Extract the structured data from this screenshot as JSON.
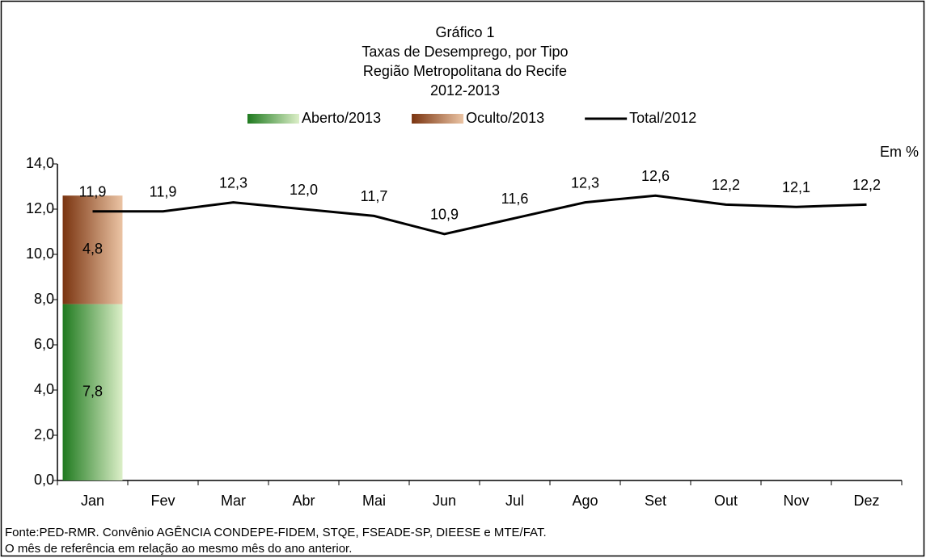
{
  "chart_data": {
    "type": "combo",
    "title": [
      "Gráfico 1",
      "Taxas de Desemprego, por Tipo",
      "Região Metropolitana do Recife",
      "2012-2013"
    ],
    "unit_label": "Em %",
    "categories": [
      "Jan",
      "Fev",
      "Mar",
      "Abr",
      "Mai",
      "Jun",
      "Jul",
      "Ago",
      "Set",
      "Out",
      "Nov",
      "Dez"
    ],
    "series": [
      {
        "name": "Aberto/2013",
        "type": "bar",
        "color": "#2a8a2a",
        "values": [
          7.8,
          null,
          null,
          null,
          null,
          null,
          null,
          null,
          null,
          null,
          null,
          null
        ],
        "value_labels": [
          "7,8",
          null,
          null,
          null,
          null,
          null,
          null,
          null,
          null,
          null,
          null,
          null
        ]
      },
      {
        "name": "Oculto/2013",
        "type": "bar",
        "color": "#7a3714",
        "values": [
          4.8,
          null,
          null,
          null,
          null,
          null,
          null,
          null,
          null,
          null,
          null,
          null
        ],
        "value_labels": [
          "4,8",
          null,
          null,
          null,
          null,
          null,
          null,
          null,
          null,
          null,
          null,
          null
        ]
      },
      {
        "name": "Total/2012",
        "type": "line",
        "color": "#000000",
        "values": [
          11.9,
          11.9,
          12.3,
          12.0,
          11.7,
          10.9,
          11.6,
          12.3,
          12.6,
          12.2,
          12.1,
          12.2
        ],
        "value_labels": [
          "11,9",
          "11,9",
          "12,3",
          "12,0",
          "11,7",
          "10,9",
          "11,6",
          "12,3",
          "12,6",
          "12,2",
          "12,1",
          "12,2"
        ]
      }
    ],
    "ylim": [
      0,
      14
    ],
    "yticks": [
      {
        "value": 0,
        "label": "0,0"
      },
      {
        "value": 2,
        "label": "2,0"
      },
      {
        "value": 4,
        "label": "4,0"
      },
      {
        "value": 6,
        "label": "6,0"
      },
      {
        "value": 8,
        "label": "8,0"
      },
      {
        "value": 10,
        "label": "10,0"
      },
      {
        "value": 12,
        "label": "12,0"
      },
      {
        "value": 14,
        "label": "14,0"
      }
    ],
    "footnotes": [
      "Fonte:PED-RMR. Convênio AGÊNCIA CONDEPE-FIDEM, STQE, FSEADE-SP, DIEESE e MTE/FAT.",
      "O mês de referência em relação ao mesmo mês do ano anterior."
    ]
  }
}
